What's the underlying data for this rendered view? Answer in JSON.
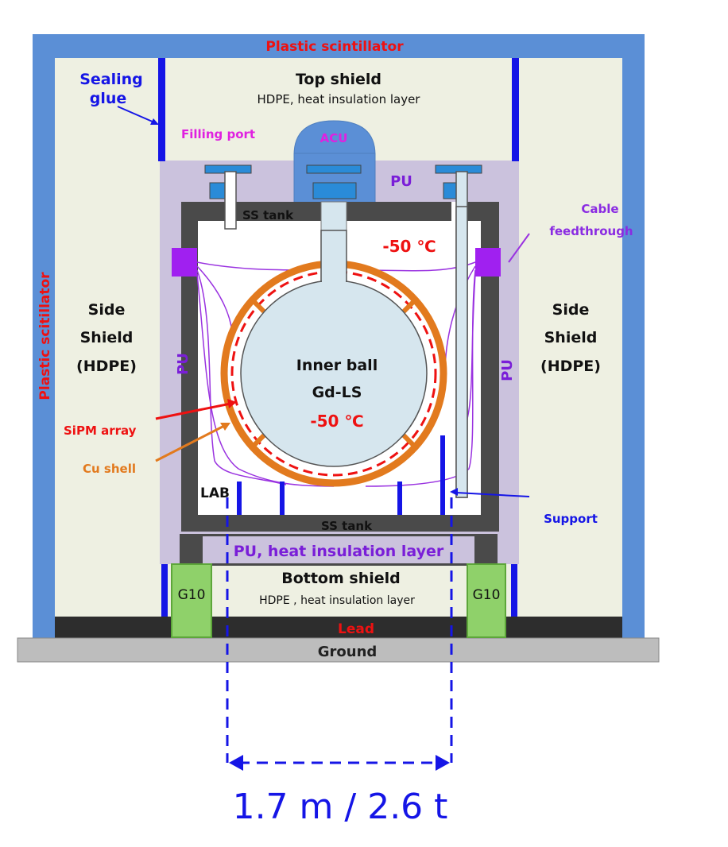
{
  "labels": {
    "plastic_scintillator_top": "Plastic scintillator",
    "plastic_scintillator_side": "Plastic scitillator",
    "sealing_glue_1": "Sealing",
    "sealing_glue_2": "glue",
    "top_shield_1": "Top shield",
    "top_shield_2": "HDPE, heat insulation layer",
    "filling_port": "Filling port",
    "acu": "ACU",
    "pu_top": "PU",
    "ss_tank_top": "SS tank",
    "cable_1": "Cable",
    "cable_2": "feedthrough",
    "temp_outer": "-50 ℃",
    "side_left_1": "Side",
    "side_left_2": "Shield",
    "side_left_3": "(HDPE)",
    "side_right_1": "Side",
    "side_right_2": "Shield",
    "side_right_3": "(HDPE)",
    "pu_left": "PU",
    "pu_right": "PU",
    "inner_1": "Inner ball",
    "inner_2": "Gd-LS",
    "temp_inner": "-50 ℃",
    "sipm": "SiPM array",
    "cu_shell": "Cu shell",
    "lab": "LAB",
    "support": "Support",
    "ss_tank_bottom": "SS tank",
    "pu_bottom": "PU,  heat insulation layer",
    "bottom_shield_1": "Bottom shield",
    "bottom_shield_2": "HDPE , heat insulation layer",
    "g10_left": "G10",
    "g10_right": "G10",
    "lead": "Lead",
    "ground": "Ground",
    "dimension": "1.7 m / 2.6 t"
  },
  "colors": {
    "scintillator": "#5b8fd6",
    "hdpe": "#eef0e2",
    "pu": "#cbc2dd",
    "steel": "#4a4a4a",
    "copper": "#e27a1e",
    "inner_ball": "#d6e6ee",
    "g10": "#8fd16a",
    "lead": "#2d2d2d",
    "ground": "#bdbdbd",
    "blue_label": "#1a1aee",
    "red_label": "#ee1111",
    "purple_label": "#8a2be2",
    "magenta_label": "#e020e0",
    "orange_label": "#e27a1e"
  }
}
